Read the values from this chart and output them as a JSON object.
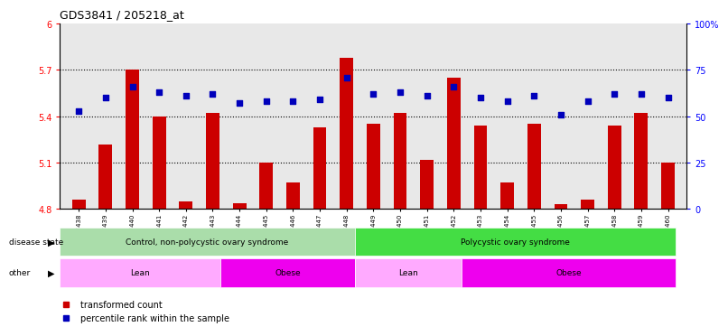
{
  "title": "GDS3841 / 205218_at",
  "samples": [
    "GSM277438",
    "GSM277439",
    "GSM277440",
    "GSM277441",
    "GSM277442",
    "GSM277443",
    "GSM277444",
    "GSM277445",
    "GSM277446",
    "GSM277447",
    "GSM277448",
    "GSM277449",
    "GSM277450",
    "GSM277451",
    "GSM277452",
    "GSM277453",
    "GSM277454",
    "GSM277455",
    "GSM277456",
    "GSM277457",
    "GSM277458",
    "GSM277459",
    "GSM277460"
  ],
  "bar_values": [
    4.86,
    5.22,
    5.7,
    5.4,
    4.85,
    5.42,
    4.84,
    5.1,
    4.97,
    5.33,
    5.78,
    5.35,
    5.42,
    5.12,
    5.65,
    5.34,
    4.97,
    5.35,
    4.83,
    4.86,
    5.34,
    5.42,
    5.1
  ],
  "dot_values": [
    53,
    60,
    66,
    63,
    61,
    62,
    57,
    58,
    58,
    59,
    71,
    62,
    63,
    61,
    66,
    60,
    58,
    61,
    51,
    58,
    62,
    62,
    60
  ],
  "ylim_left": [
    4.8,
    6.0
  ],
  "ylim_right": [
    0,
    100
  ],
  "yticks_left": [
    4.8,
    5.1,
    5.4,
    5.7,
    6.0
  ],
  "ytick_labels_left": [
    "4.8",
    "5.1",
    "5.4",
    "5.7",
    "6"
  ],
  "yticks_right": [
    0,
    25,
    50,
    75,
    100
  ],
  "ytick_labels_right": [
    "0",
    "25",
    "50",
    "75",
    "100%"
  ],
  "bar_color": "#cc0000",
  "dot_color": "#0000bb",
  "bar_bottom": 4.8,
  "grid_yticks": [
    5.1,
    5.4,
    5.7
  ],
  "disease_state_groups": [
    {
      "label": "Control, non-polycystic ovary syndrome",
      "start": 0,
      "end": 10,
      "color": "#aaddaa"
    },
    {
      "label": "Polycystic ovary syndrome",
      "start": 11,
      "end": 22,
      "color": "#44dd44"
    }
  ],
  "other_groups": [
    {
      "label": "Lean",
      "start": 0,
      "end": 5,
      "color": "#ffaaff"
    },
    {
      "label": "Obese",
      "start": 6,
      "end": 10,
      "color": "#ee00ee"
    },
    {
      "label": "Lean",
      "start": 11,
      "end": 14,
      "color": "#ffaaff"
    },
    {
      "label": "Obese",
      "start": 15,
      "end": 22,
      "color": "#ee00ee"
    }
  ],
  "disease_state_label": "disease state",
  "other_label": "other",
  "legend_items": [
    {
      "label": "transformed count",
      "color": "#cc0000"
    },
    {
      "label": "percentile rank within the sample",
      "color": "#0000bb"
    }
  ],
  "background_color": "#ffffff",
  "plot_bg": "#e8e8e8"
}
